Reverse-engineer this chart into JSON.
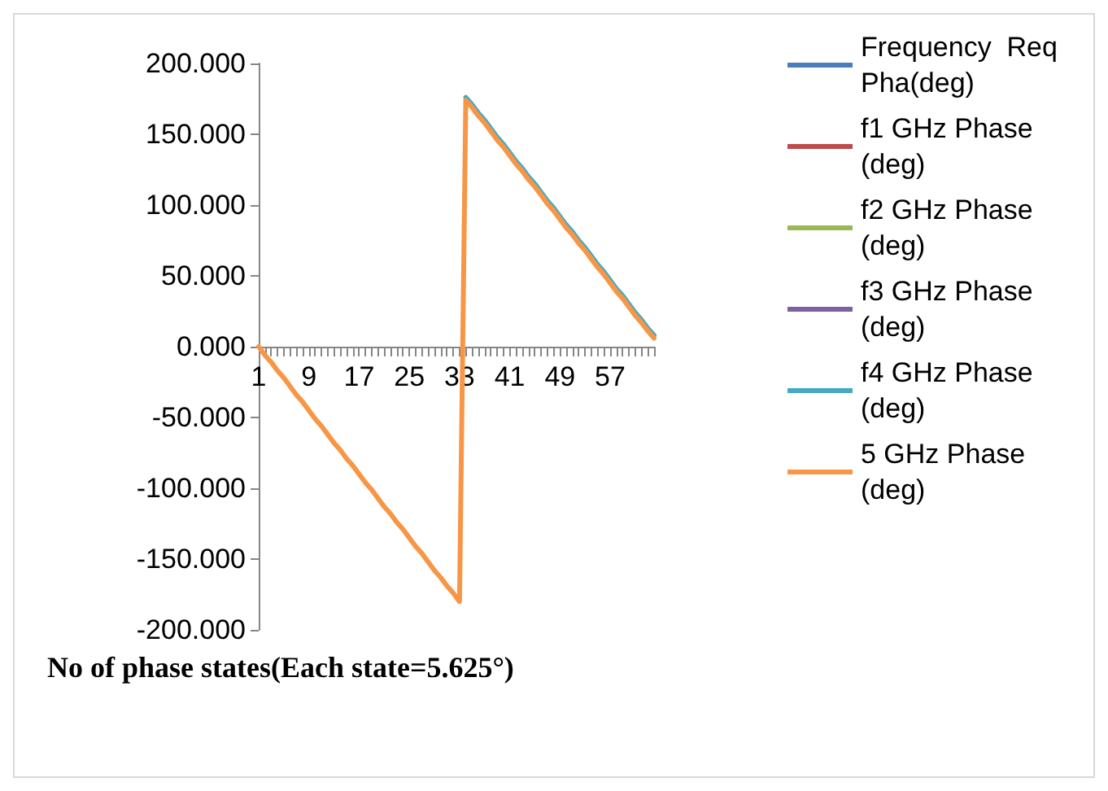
{
  "chart_data": {
    "type": "line",
    "xlabel": "No of phase states(Each state=5.625°)",
    "categories": [
      "1",
      null,
      null,
      null,
      null,
      null,
      null,
      null,
      "9",
      null,
      null,
      null,
      null,
      null,
      null,
      null,
      "17",
      null,
      null,
      null,
      null,
      null,
      null,
      null,
      "25",
      null,
      null,
      null,
      null,
      null,
      null,
      null,
      "33",
      null,
      null,
      null,
      null,
      null,
      null,
      null,
      "41",
      null,
      null,
      null,
      null,
      null,
      null,
      null,
      "49",
      null,
      null,
      null,
      null,
      null,
      null,
      null,
      "57",
      null,
      null,
      null,
      null,
      null,
      null,
      null
    ],
    "series": [
      {
        "name": "Frequency  Req Pha(deg)",
        "color": "#4a7ebb",
        "values": [
          null,
          null,
          null,
          null,
          null,
          null,
          null,
          null,
          null,
          null,
          null,
          null,
          null,
          null,
          null,
          null,
          null,
          null,
          null,
          null,
          null,
          null,
          null,
          null,
          null,
          null,
          null,
          null,
          null,
          null,
          null,
          null,
          null,
          null,
          null,
          null,
          null,
          null,
          null,
          null,
          null,
          null,
          null,
          null,
          null,
          null,
          null,
          null,
          null,
          null,
          null,
          null,
          null,
          null,
          null,
          null,
          null,
          null,
          null,
          null,
          null,
          null,
          null,
          null
        ]
      },
      {
        "name": "f1 GHz Phase (deg)",
        "color": "#be4b48",
        "values": [
          null,
          null,
          null,
          null,
          null,
          null,
          null,
          null,
          null,
          null,
          null,
          null,
          null,
          null,
          null,
          null,
          null,
          null,
          null,
          null,
          null,
          null,
          null,
          null,
          null,
          null,
          null,
          null,
          null,
          null,
          null,
          null,
          null,
          null,
          null,
          null,
          null,
          null,
          null,
          null,
          null,
          null,
          null,
          null,
          null,
          null,
          null,
          null,
          null,
          null,
          null,
          null,
          null,
          null,
          null,
          null,
          null,
          null,
          null,
          null,
          null,
          null,
          null,
          null
        ]
      },
      {
        "name": "f2 GHz Phase (deg)",
        "color": "#98b954",
        "values": [
          null,
          null,
          null,
          null,
          null,
          null,
          null,
          null,
          null,
          null,
          null,
          null,
          null,
          null,
          null,
          null,
          null,
          null,
          null,
          null,
          null,
          null,
          null,
          null,
          null,
          null,
          null,
          null,
          null,
          null,
          null,
          null,
          null,
          null,
          null,
          null,
          null,
          null,
          null,
          null,
          null,
          null,
          null,
          null,
          null,
          null,
          null,
          null,
          null,
          null,
          null,
          null,
          null,
          null,
          null,
          null,
          null,
          null,
          null,
          null,
          null,
          null,
          null,
          null
        ]
      },
      {
        "name": "f3 GHz Phase (deg)",
        "color": "#7d60a0",
        "values": [
          null,
          null,
          null,
          null,
          null,
          null,
          null,
          null,
          null,
          null,
          null,
          null,
          null,
          null,
          null,
          null,
          null,
          null,
          null,
          null,
          null,
          null,
          null,
          null,
          null,
          null,
          null,
          null,
          null,
          null,
          null,
          null,
          null,
          null,
          null,
          null,
          null,
          null,
          null,
          null,
          null,
          null,
          null,
          null,
          null,
          null,
          null,
          null,
          null,
          null,
          null,
          null,
          null,
          null,
          null,
          null,
          null,
          null,
          null,
          null,
          null,
          null,
          null,
          null
        ]
      },
      {
        "name": "f4 GHz Phase (deg)",
        "color": "#46aac5",
        "values": [
          null,
          null,
          null,
          null,
          null,
          null,
          null,
          null,
          null,
          null,
          null,
          null,
          null,
          null,
          null,
          null,
          null,
          null,
          null,
          null,
          null,
          null,
          null,
          null,
          null,
          null,
          null,
          null,
          null,
          null,
          null,
          null,
          null,
          176,
          171,
          165,
          160,
          154,
          148,
          143,
          137,
          131,
          126,
          120,
          115,
          109,
          103,
          98,
          92,
          86,
          81,
          75,
          70,
          64,
          58,
          53,
          47,
          41,
          36,
          30,
          24,
          19,
          13,
          8
        ]
      },
      {
        "name": "5 GHz Phase (deg)",
        "color": "#f79646",
        "values": [
          0,
          -6,
          -11,
          -17,
          -22,
          -28,
          -34,
          -39,
          -45,
          -51,
          -56,
          -62,
          -68,
          -73,
          -79,
          -84,
          -90,
          -96,
          -101,
          -107,
          -113,
          -118,
          -124,
          -129,
          -135,
          -141,
          -146,
          -152,
          -158,
          -163,
          -169,
          -174,
          -180,
          174,
          169,
          163,
          158,
          152,
          146,
          141,
          135,
          129,
          124,
          118,
          113,
          107,
          101,
          96,
          90,
          84,
          79,
          73,
          68,
          62,
          56,
          51,
          45,
          39,
          34,
          28,
          22,
          17,
          11,
          6
        ]
      }
    ],
    "ylim": [
      -200,
      200
    ],
    "yticks": [
      {
        "value": -200,
        "label": "-200.000"
      },
      {
        "value": -150,
        "label": "-150.000"
      },
      {
        "value": -100,
        "label": "-100.000"
      },
      {
        "value": -50,
        "label": "-50.000"
      },
      {
        "value": 0,
        "label": "0.000"
      },
      {
        "value": 50,
        "label": "50.000"
      },
      {
        "value": 100,
        "label": "100.000"
      },
      {
        "value": 150,
        "label": "150.000"
      },
      {
        "value": 200,
        "label": "200.000"
      }
    ],
    "grid": false,
    "legend": "right",
    "marker": "none",
    "line_style": "solid"
  }
}
